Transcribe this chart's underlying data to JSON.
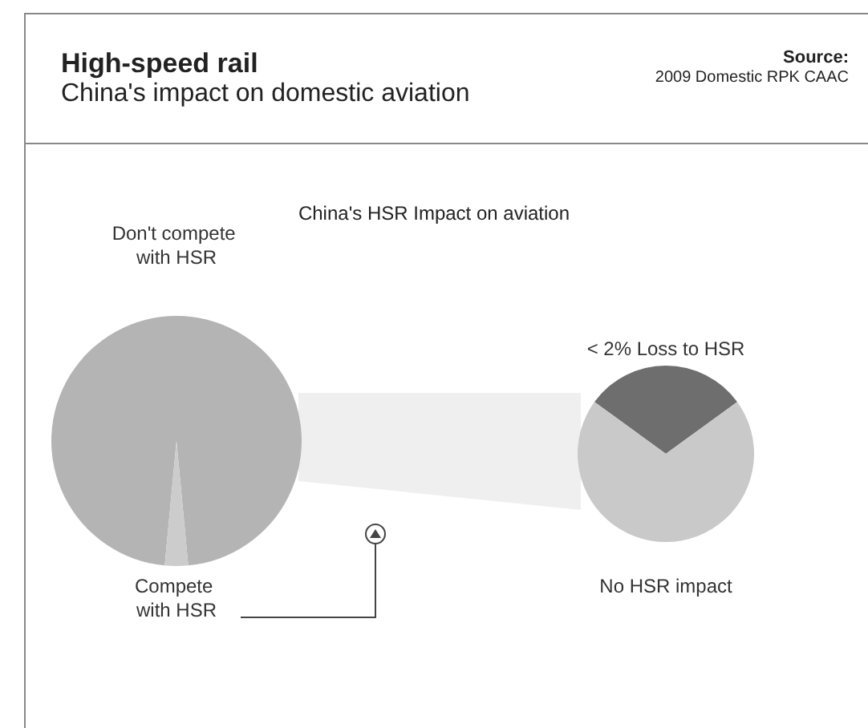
{
  "chart_data": [
    {
      "type": "other",
      "title": "High-speed rail",
      "subtitle": "China's impact on domestic aviation",
      "annotations": [
        "Source:",
        "2009 Domestic RPK CAAC"
      ]
    },
    {
      "type": "pie",
      "title": "China's HSR Impact on aviation",
      "categories": [
        "Don't compete with HSR",
        "Compete with HSR"
      ],
      "values": [
        97,
        3
      ],
      "colors": [
        "#b4b4b4",
        "#cccccc"
      ]
    },
    {
      "type": "pie",
      "categories": [
        "< 2% Loss to HSR",
        "No HSR impact"
      ],
      "values": [
        30,
        70
      ],
      "colors": [
        "#6e6e6e",
        "#c9c9c9"
      ]
    }
  ]
}
